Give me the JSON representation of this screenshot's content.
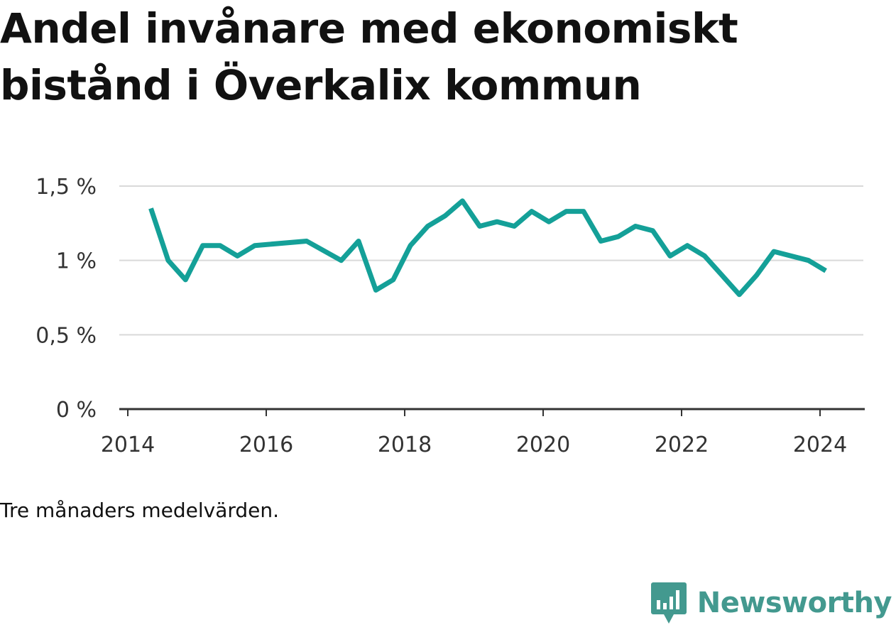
{
  "title": "Andel invånare med ekonomiskt bistånd i Överkalix kommun",
  "note": "Tre månaders medelvärden.",
  "brand": {
    "name": "Newsworthy",
    "icon": "newsworthy-logo-icon",
    "color": "#43998f"
  },
  "colors": {
    "line": "#14a098",
    "grid": "#d9d9d9",
    "axis": "#333333"
  },
  "chart_data": {
    "type": "line",
    "title": "Andel invånare med ekonomiskt bistånd i Överkalix kommun",
    "xlabel": "",
    "ylabel": "",
    "x_ticks": [
      "2014",
      "2016",
      "2018",
      "2020",
      "2022",
      "2024"
    ],
    "y_ticks": [
      {
        "value": 0,
        "label": "0 %"
      },
      {
        "value": 0.5,
        "label": "0,5 %"
      },
      {
        "value": 1.0,
        "label": "1 %"
      },
      {
        "value": 1.5,
        "label": "1,5 %"
      }
    ],
    "ylim": [
      0,
      1.5
    ],
    "xlim": [
      "2014-01",
      "2024-08"
    ],
    "grid": true,
    "legend": "none",
    "series": [
      {
        "points": [
          {
            "x": "2014-05",
            "y": 1.35
          },
          {
            "x": "2014-08",
            "y": 1.0
          },
          {
            "x": "2014-11",
            "y": 0.87
          },
          {
            "x": "2015-02",
            "y": 1.1
          },
          {
            "x": "2015-05",
            "y": 1.1
          },
          {
            "x": "2015-08",
            "y": 1.03
          },
          {
            "x": "2015-11",
            "y": 1.1
          },
          {
            "x": "2016-08",
            "y": 1.13
          },
          {
            "x": "2017-02",
            "y": 1.0
          },
          {
            "x": "2017-05",
            "y": 1.13
          },
          {
            "x": "2017-08",
            "y": 0.8
          },
          {
            "x": "2017-11",
            "y": 0.87
          },
          {
            "x": "2018-02",
            "y": 1.1
          },
          {
            "x": "2018-05",
            "y": 1.23
          },
          {
            "x": "2018-08",
            "y": 1.3
          },
          {
            "x": "2018-11",
            "y": 1.4
          },
          {
            "x": "2019-02",
            "y": 1.23
          },
          {
            "x": "2019-05",
            "y": 1.26
          },
          {
            "x": "2019-08",
            "y": 1.23
          },
          {
            "x": "2019-11",
            "y": 1.33
          },
          {
            "x": "2020-02",
            "y": 1.26
          },
          {
            "x": "2020-05",
            "y": 1.33
          },
          {
            "x": "2020-08",
            "y": 1.33
          },
          {
            "x": "2020-11",
            "y": 1.13
          },
          {
            "x": "2021-02",
            "y": 1.16
          },
          {
            "x": "2021-05",
            "y": 1.23
          },
          {
            "x": "2021-08",
            "y": 1.2
          },
          {
            "x": "2021-11",
            "y": 1.03
          },
          {
            "x": "2022-02",
            "y": 1.1
          },
          {
            "x": "2022-05",
            "y": 1.03
          },
          {
            "x": "2022-08",
            "y": 0.9
          },
          {
            "x": "2022-11",
            "y": 0.77
          },
          {
            "x": "2023-02",
            "y": 0.9
          },
          {
            "x": "2023-05",
            "y": 1.06
          },
          {
            "x": "2023-11",
            "y": 1.0
          },
          {
            "x": "2024-02",
            "y": 0.93
          }
        ]
      }
    ]
  }
}
